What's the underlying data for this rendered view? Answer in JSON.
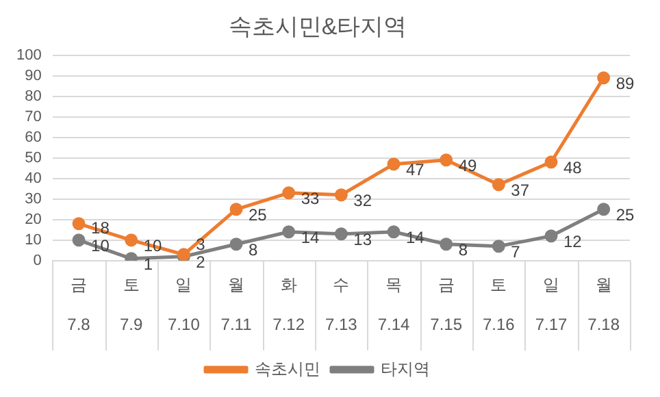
{
  "chart_data": {
    "type": "line",
    "title": "속초시민&타지역",
    "categories": [
      "금\n7.8",
      "토\n7.9",
      "일\n7.10",
      "월\n7.11",
      "화\n7.12",
      "수\n7.13",
      "목\n7.14",
      "금\n7.15",
      "토\n7.16",
      "일\n7.17",
      "월\n7.18"
    ],
    "series": [
      {
        "name": "속초시민",
        "color": "#ed7d31",
        "values": [
          18,
          10,
          3,
          25,
          33,
          32,
          47,
          49,
          37,
          48,
          89
        ]
      },
      {
        "name": "타지역",
        "color": "#7f7f7f",
        "values": [
          10,
          1,
          2,
          8,
          14,
          13,
          14,
          8,
          7,
          12,
          25
        ]
      }
    ],
    "ylim": [
      0,
      100
    ],
    "yticks": [
      0,
      10,
      20,
      30,
      40,
      50,
      60,
      70,
      80,
      90,
      100
    ],
    "grid": "y",
    "legend": "bottom",
    "marker": "circle",
    "line_style": "solid",
    "data_labels": true
  }
}
